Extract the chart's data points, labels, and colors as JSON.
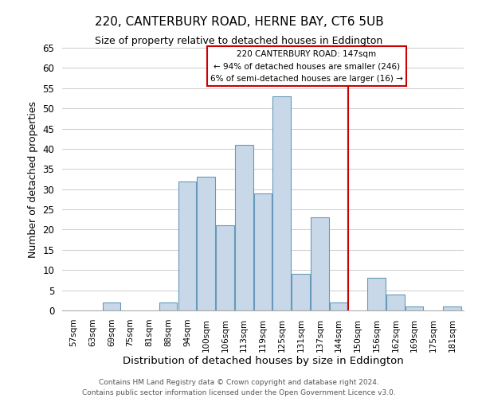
{
  "title": "220, CANTERBURY ROAD, HERNE BAY, CT6 5UB",
  "subtitle": "Size of property relative to detached houses in Eddington",
  "xlabel": "Distribution of detached houses by size in Eddington",
  "ylabel": "Number of detached properties",
  "footer1": "Contains HM Land Registry data © Crown copyright and database right 2024.",
  "footer2": "Contains public sector information licensed under the Open Government Licence v3.0.",
  "bin_labels": [
    "57sqm",
    "63sqm",
    "69sqm",
    "75sqm",
    "81sqm",
    "88sqm",
    "94sqm",
    "100sqm",
    "106sqm",
    "113sqm",
    "119sqm",
    "125sqm",
    "131sqm",
    "137sqm",
    "144sqm",
    "150sqm",
    "156sqm",
    "162sqm",
    "169sqm",
    "175sqm",
    "181sqm"
  ],
  "bar_values": [
    0,
    0,
    2,
    0,
    0,
    2,
    32,
    33,
    21,
    41,
    29,
    53,
    9,
    23,
    2,
    0,
    8,
    4,
    1,
    0,
    1
  ],
  "bar_color": "#c8d8e8",
  "bar_edge_color": "#6699bb",
  "ylim": [
    0,
    65
  ],
  "yticks": [
    0,
    5,
    10,
    15,
    20,
    25,
    30,
    35,
    40,
    45,
    50,
    55,
    60,
    65
  ],
  "property_line_x": 14.5,
  "property_line_label": "220 CANTERBURY ROAD: 147sqm",
  "annotation_line1": "← 94% of detached houses are smaller (246)",
  "annotation_line2": "6% of semi-detached houses are larger (16) →",
  "line_color": "#cc0000",
  "background_color": "#ffffff",
  "grid_color": "#cccccc"
}
